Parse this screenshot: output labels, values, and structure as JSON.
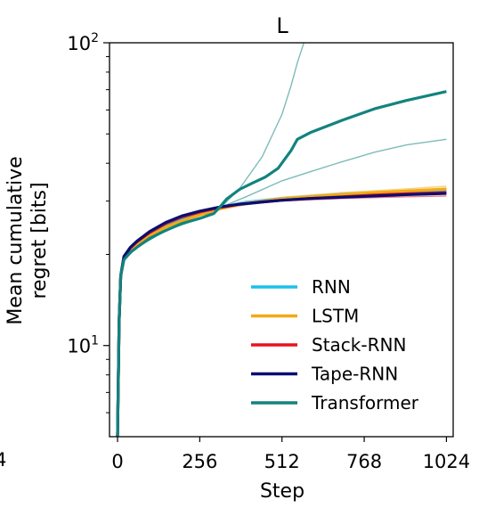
{
  "chart_data": {
    "type": "line",
    "title": "L",
    "xlabel": "Step",
    "ylabel_lines": [
      "Mean cumulative",
      "regret [bits]"
    ],
    "xlim": [
      -25,
      1045
    ],
    "ylim": [
      5,
      100
    ],
    "yscale": "log",
    "x_ticks": [
      {
        "value": 0,
        "label": "0"
      },
      {
        "value": 256,
        "label": "256"
      },
      {
        "value": 512,
        "label": "512"
      },
      {
        "value": 768,
        "label": "768"
      },
      {
        "value": 1024,
        "label": "1024"
      }
    ],
    "y_ticks": [
      {
        "value": 10,
        "label_base": "10",
        "label_exp": "1"
      },
      {
        "value": 100,
        "label_base": "10",
        "label_exp": "2"
      }
    ],
    "left_edge_partial_label": "4",
    "legend_position": "lower-right",
    "series": [
      {
        "name": "RNN",
        "color": "#1ac0ec",
        "x": [
          0,
          5,
          10,
          20,
          40,
          60,
          100,
          150,
          200,
          256,
          320,
          380,
          450,
          512,
          600,
          700,
          800,
          900,
          1024
        ],
        "values": [
          5,
          12,
          17,
          19.5,
          21,
          22,
          23.5,
          25,
          26.2,
          27.3,
          28.4,
          29.2,
          29.8,
          30.3,
          30.8,
          31.3,
          31.7,
          32.1,
          32.5
        ]
      },
      {
        "name": "LSTM",
        "color": "#f4a911",
        "x": [
          0,
          5,
          10,
          20,
          40,
          60,
          100,
          150,
          200,
          256,
          320,
          380,
          450,
          512,
          600,
          700,
          800,
          900,
          1024
        ],
        "values": [
          5,
          12,
          17,
          19.3,
          20.6,
          21.5,
          23,
          24.6,
          25.8,
          27,
          28.3,
          29.2,
          29.9,
          30.5,
          31,
          31.5,
          32,
          32.4,
          32.9
        ]
      },
      {
        "name": "Stack-RNN",
        "color": "#e8131b",
        "x": [
          0,
          5,
          10,
          20,
          40,
          60,
          100,
          150,
          200,
          256,
          320,
          380,
          450,
          512,
          600,
          700,
          800,
          900,
          1024
        ],
        "values": [
          5,
          12,
          17,
          19.6,
          21,
          22,
          23.6,
          25.3,
          26.6,
          27.6,
          28.6,
          29.3,
          29.8,
          30.2,
          30.6,
          31,
          31.4,
          31.7,
          32
        ]
      },
      {
        "name": "Tape-RNN",
        "color": "#0a0e72",
        "x": [
          0,
          5,
          10,
          20,
          40,
          60,
          100,
          150,
          200,
          256,
          320,
          380,
          450,
          512,
          600,
          700,
          800,
          900,
          1024
        ],
        "values": [
          5,
          12,
          17,
          19.7,
          21.1,
          22.1,
          23.8,
          25.5,
          26.8,
          27.8,
          28.7,
          29.3,
          29.8,
          30.2,
          30.6,
          30.9,
          31.2,
          31.5,
          31.8
        ]
      },
      {
        "name": "Transformer",
        "color": "#12837f",
        "x": [
          0,
          5,
          10,
          20,
          40,
          60,
          100,
          150,
          200,
          256,
          300,
          320,
          340,
          380,
          420,
          460,
          500,
          540,
          560,
          600,
          700,
          800,
          900,
          1024
        ],
        "values": [
          5,
          12,
          17,
          19.2,
          20.3,
          21.1,
          22.6,
          24,
          25.3,
          26.3,
          27.3,
          28.8,
          30.5,
          32.8,
          34.4,
          36,
          38.5,
          44,
          48,
          50.5,
          55.5,
          60.5,
          64.5,
          69
        ]
      }
    ],
    "faint_runs": [
      {
        "color": "#12837f",
        "x": [
          0,
          10,
          20,
          60,
          150,
          256,
          320,
          380,
          450,
          512,
          540,
          560,
          580
        ],
        "values": [
          5,
          17,
          19.2,
          21.1,
          24,
          26.3,
          28.5,
          33,
          42,
          58,
          72,
          86,
          100
        ]
      },
      {
        "color": "#12837f",
        "x": [
          0,
          10,
          20,
          60,
          150,
          256,
          320,
          400,
          512,
          600,
          700,
          800,
          900,
          1024
        ],
        "values": [
          5,
          17,
          19.2,
          21.1,
          24,
          26.3,
          28.6,
          31,
          35,
          37.5,
          40.5,
          43.5,
          46,
          48
        ]
      },
      {
        "color": "#f4a911",
        "x": [
          0,
          10,
          20,
          60,
          150,
          256,
          400,
          512,
          700,
          900,
          1024
        ],
        "values": [
          5,
          17,
          19.4,
          21.7,
          25,
          27.6,
          29.8,
          30.9,
          32,
          32.9,
          33.6
        ]
      },
      {
        "color": "#e8131b",
        "x": [
          0,
          10,
          20,
          60,
          150,
          256,
          400,
          512,
          700,
          900,
          1024
        ],
        "values": [
          5,
          17,
          19.3,
          21.8,
          25.1,
          27.4,
          29.2,
          30,
          30.6,
          31,
          31.2
        ]
      },
      {
        "color": "#1ac0ec",
        "x": [
          0,
          10,
          20,
          60,
          150,
          256,
          400,
          512,
          700,
          900,
          1024
        ],
        "values": [
          5,
          17,
          19.6,
          22.2,
          25.4,
          27.9,
          30,
          30.8,
          31.8,
          32.4,
          33
        ]
      }
    ]
  }
}
